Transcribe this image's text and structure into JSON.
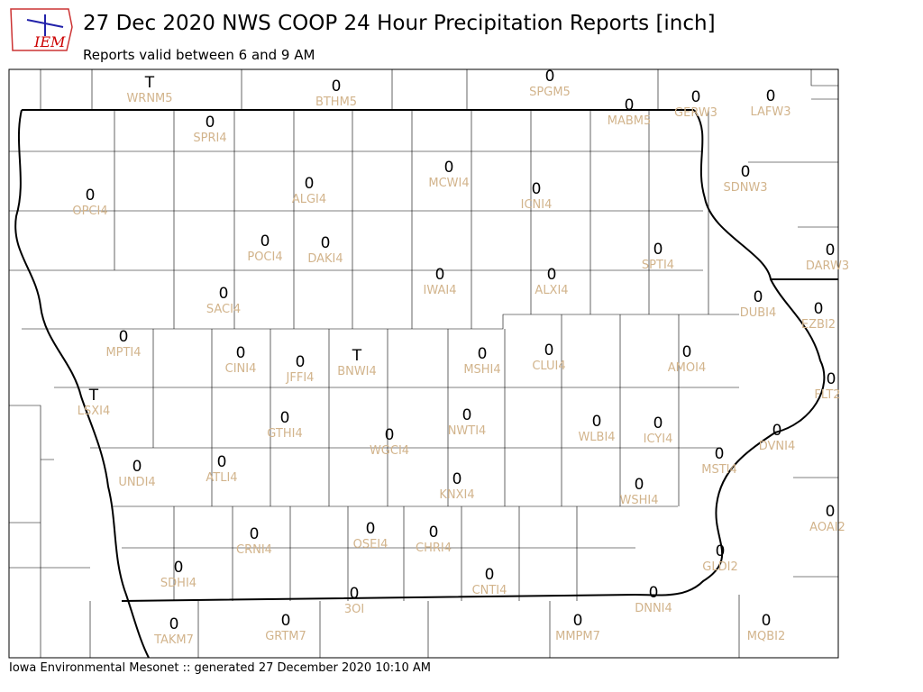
{
  "header": {
    "title": "27 Dec 2020 NWS COOP 24 Hour Precipitation Reports [inch]",
    "subtitle": "Reports valid between 6 and 9 AM",
    "logo": "IEM"
  },
  "footer": "Iowa Environmental Mesonet :: generated 27 December 2020 10:10 AM",
  "stations": [
    {
      "id": "WRNM5",
      "value": "T"
    },
    {
      "id": "BTHM5",
      "value": 0
    },
    {
      "id": "SPGM5",
      "value": 0
    },
    {
      "id": "MABM5",
      "value": 0
    },
    {
      "id": "GERW3",
      "value": 0
    },
    {
      "id": "LAFW3",
      "value": 0
    },
    {
      "id": "SPRI4",
      "value": 0
    },
    {
      "id": "OPCI4",
      "value": 0
    },
    {
      "id": "ALGI4",
      "value": 0
    },
    {
      "id": "MCWI4",
      "value": 0
    },
    {
      "id": "ICNI4",
      "value": 0
    },
    {
      "id": "SDNW3",
      "value": 0
    },
    {
      "id": "POCI4",
      "value": 0
    },
    {
      "id": "DAKI4",
      "value": 0
    },
    {
      "id": "SPTI4",
      "value": 0
    },
    {
      "id": "DARW3",
      "value": 0
    },
    {
      "id": "IWAI4",
      "value": 0
    },
    {
      "id": "ALXI4",
      "value": 0
    },
    {
      "id": "SACI4",
      "value": 0
    },
    {
      "id": "DUBI4",
      "value": 0
    },
    {
      "id": "EZBI2",
      "value": 0
    },
    {
      "id": "MPTI4",
      "value": 0
    },
    {
      "id": "CINI4",
      "value": 0
    },
    {
      "id": "JFFI4",
      "value": 0
    },
    {
      "id": "BNWI4",
      "value": "T"
    },
    {
      "id": "MSHI4",
      "value": 0
    },
    {
      "id": "CLUI4",
      "value": 0
    },
    {
      "id": "AMOI4",
      "value": 0
    },
    {
      "id": "FLT2",
      "value": 0
    },
    {
      "id": "LSXI4",
      "value": "T"
    },
    {
      "id": "GTHI4",
      "value": 0
    },
    {
      "id": "WGCI4",
      "value": 0
    },
    {
      "id": "NWTI4",
      "value": 0
    },
    {
      "id": "WLBI4",
      "value": 0
    },
    {
      "id": "ICYI4",
      "value": 0
    },
    {
      "id": "DVNI4",
      "value": 0
    },
    {
      "id": "MSTI4",
      "value": 0
    },
    {
      "id": "UNDI4",
      "value": 0
    },
    {
      "id": "ATLI4",
      "value": 0
    },
    {
      "id": "KNXI4",
      "value": 0
    },
    {
      "id": "WSHI4",
      "value": 0
    },
    {
      "id": "AOAI2",
      "value": 0
    },
    {
      "id": "CRNI4",
      "value": 0
    },
    {
      "id": "OSEI4",
      "value": 0
    },
    {
      "id": "CHRI4",
      "value": 0
    },
    {
      "id": "GLDI2",
      "value": 0
    },
    {
      "id": "SDHI4",
      "value": 0
    },
    {
      "id": "CNTI4",
      "value": 0
    },
    {
      "id": "3OI",
      "value": 0
    },
    {
      "id": "DNNI4",
      "value": 0
    },
    {
      "id": "TAKM7",
      "value": 0
    },
    {
      "id": "GRTM7",
      "value": 0
    },
    {
      "id": "MMPM7",
      "value": 0
    },
    {
      "id": "MQBI2",
      "value": 0
    }
  ]
}
